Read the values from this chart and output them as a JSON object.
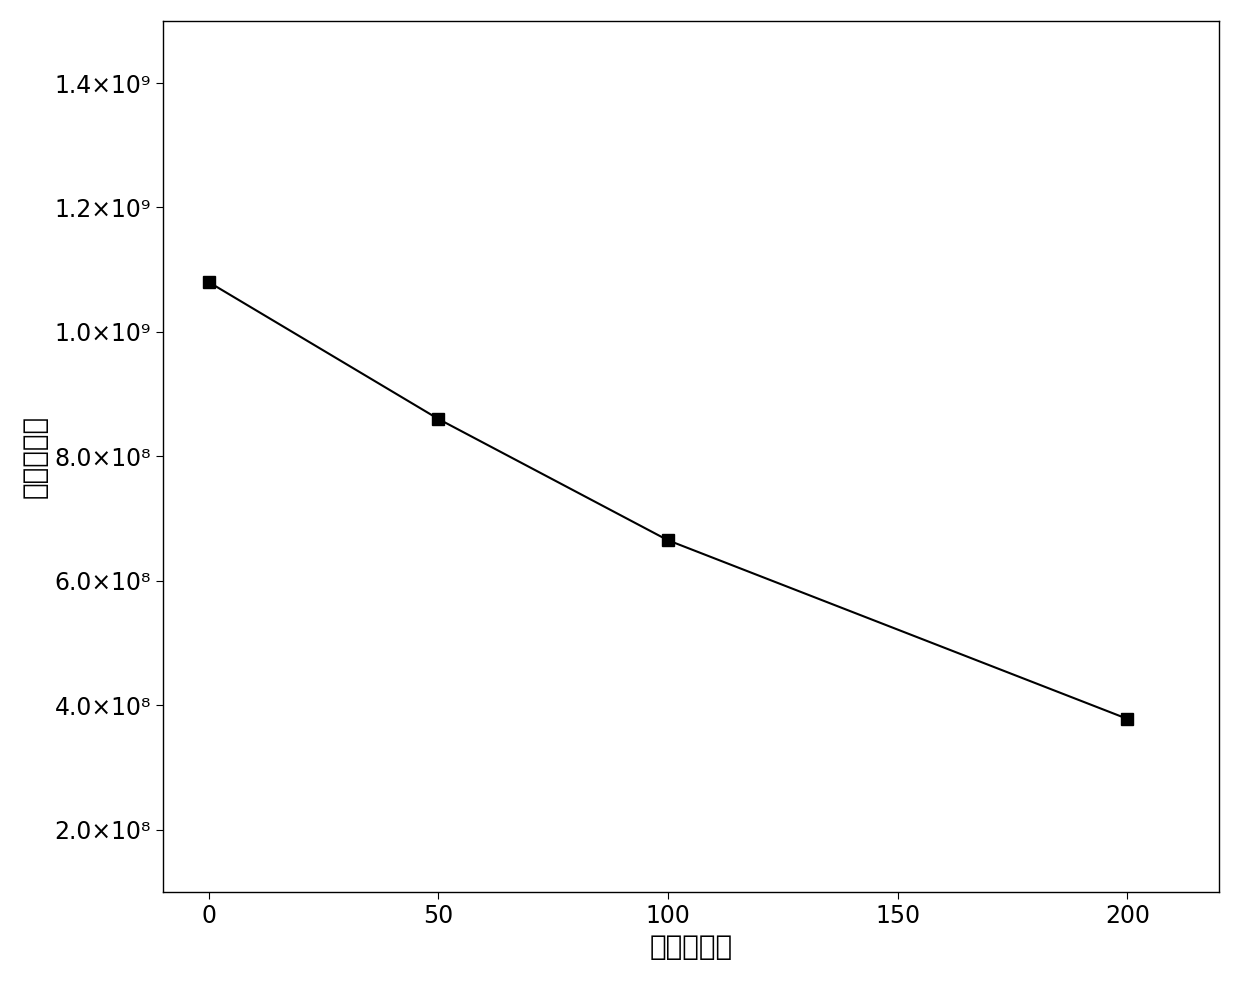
{
  "x": [
    0,
    50,
    100,
    200
  ],
  "y": [
    1080000000.0,
    860000000.0,
    665000000.0,
    378000000.0
  ],
  "xlabel": "热循环次数",
  "ylabel": "自由基含量",
  "xlim": [
    -10,
    220
  ],
  "ylim": [
    100000000.0,
    1500000000.0
  ],
  "yticks": [
    200000000.0,
    400000000.0,
    600000000.0,
    800000000.0,
    1000000000.0,
    1200000000.0,
    1400000000.0
  ],
  "xticks": [
    0,
    50,
    100,
    150,
    200
  ],
  "marker": "s",
  "markersize": 9,
  "linecolor": "#000000",
  "markercolor": "#000000",
  "linewidth": 1.5,
  "xlabel_fontsize": 20,
  "ylabel_fontsize": 20,
  "tick_fontsize": 17,
  "background_color": "#ffffff"
}
